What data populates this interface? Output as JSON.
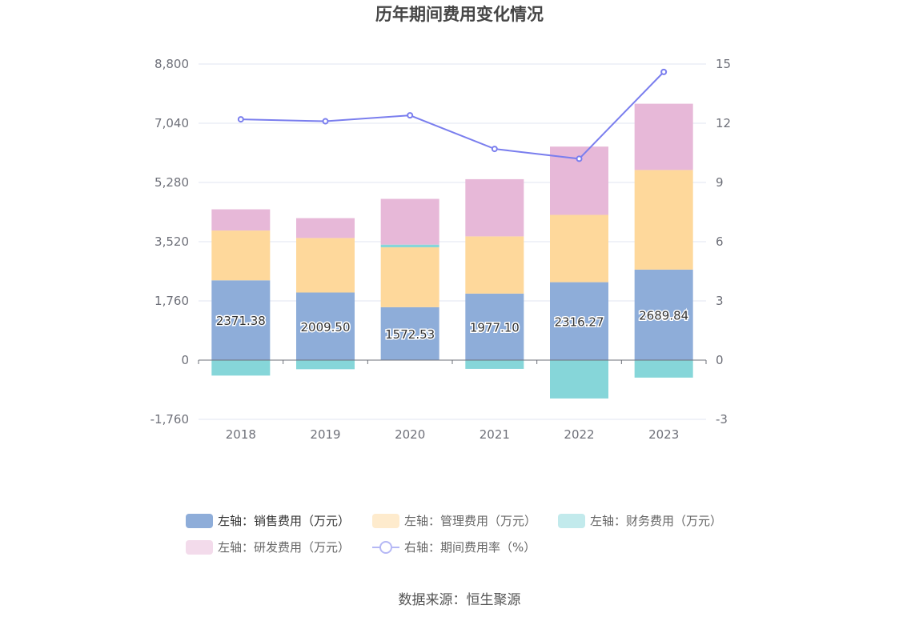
{
  "chart_data": {
    "type": "bar",
    "title": "历年期间费用变化情况",
    "categories": [
      "2018",
      "2019",
      "2020",
      "2021",
      "2022",
      "2023"
    ],
    "series": [
      {
        "name": "左轴：销售费用（万元）",
        "axis": "left",
        "color": "#8eadd9",
        "values": [
          2371.38,
          2009.5,
          1572.53,
          1977.1,
          2316.27,
          2689.84
        ],
        "labels_shown": true
      },
      {
        "name": "左轴：管理费用（万元）",
        "axis": "left",
        "color": "#fed89b",
        "values": [
          1480,
          1620,
          1780,
          1700,
          2000,
          2960
        ]
      },
      {
        "name": "左轴：财务费用（万元）",
        "axis": "left",
        "color": "#86d6d9",
        "values": [
          -460,
          -270,
          80,
          -260,
          -1140,
          -520
        ]
      },
      {
        "name": "左轴：研发费用（万元）",
        "axis": "left",
        "color": "#e7b8d8",
        "values": [
          630,
          590,
          1360,
          1700,
          2030,
          1970
        ]
      },
      {
        "name": "右轴：期间费用率（%）",
        "axis": "right",
        "type": "line",
        "color": "#7a7eee",
        "values": [
          12.2,
          12.1,
          12.4,
          10.7,
          10.2,
          14.6
        ]
      }
    ],
    "left_axis": {
      "ticks": [
        "8,800",
        "7,040",
        "5,280",
        "3,520",
        "1,760",
        "0",
        "-1,760"
      ],
      "ylim": [
        -1760,
        8800
      ]
    },
    "right_axis": {
      "ticks": [
        "15",
        "12",
        "9",
        "6",
        "3",
        "0",
        "-3"
      ],
      "ylim": [
        -3,
        15
      ]
    },
    "grid": true,
    "legend_position": "bottom"
  },
  "source": "数据来源：恒生聚源"
}
